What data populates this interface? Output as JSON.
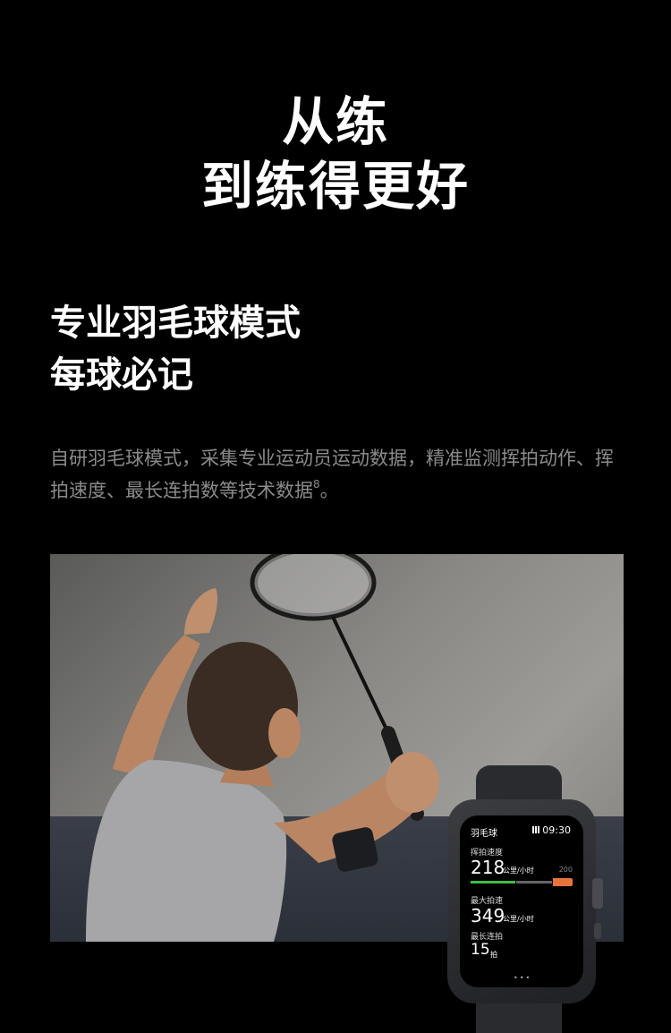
{
  "hero": {
    "line1": "从练",
    "line2": "到练得更好"
  },
  "feature": {
    "title_line1": "专业羽毛球模式",
    "title_line2": "每球必记"
  },
  "description": {
    "text": "自研羽毛球模式，采集专业运动员运动数据，精准监测挥拍动作、挥拍速度、最长连拍数等技术数据",
    "footnote": "8",
    "end": "。"
  },
  "watch": {
    "app_name": "羽毛球",
    "time": "09:30",
    "swing_speed_label": "挥拍速度",
    "swing_speed_value": "218",
    "swing_speed_unit": "公里/小时",
    "bar_max_label": "200",
    "bar_fill_fraction": 0.55,
    "max_speed_label": "最大拍速",
    "max_speed_value": "349",
    "max_speed_unit": "公里/小时",
    "longest_rally_label": "最长连拍",
    "longest_rally_value": "15",
    "longest_rally_unit": "拍",
    "pager": "•••"
  },
  "colors": {
    "background": "#000000",
    "description_text": "#8a8a8a",
    "bar_green": "#3fbf4a",
    "bar_orange": "#e8743a"
  }
}
